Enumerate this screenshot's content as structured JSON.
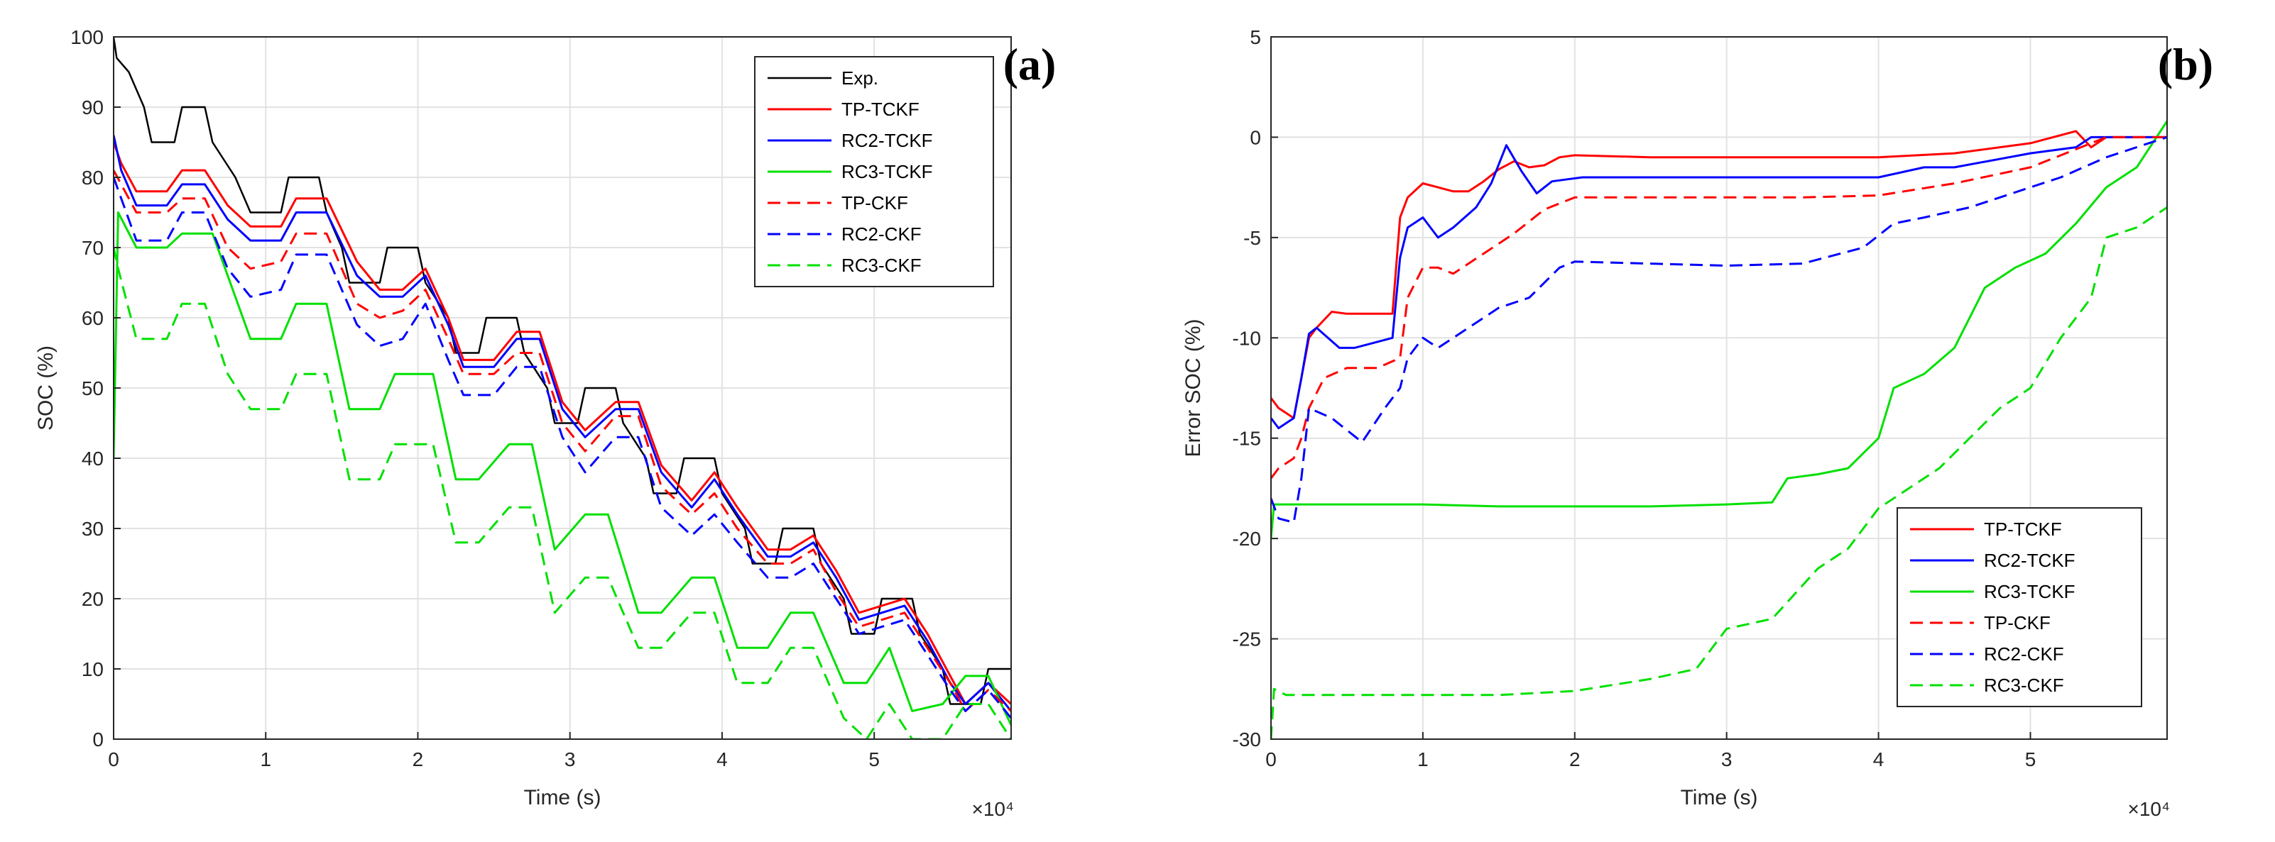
{
  "chart_data": [
    {
      "type": "line",
      "panel_label": "(a)",
      "xlabel": "Time (s)",
      "ylabel": "SOC (%)",
      "x_multiplier_label": "×10⁴",
      "xlim": [
        0,
        5.9
      ],
      "ylim": [
        0,
        100
      ],
      "xticks": [
        0,
        1,
        2,
        3,
        4,
        5
      ],
      "yticks": [
        0,
        10,
        20,
        30,
        40,
        50,
        60,
        70,
        80,
        90,
        100
      ],
      "grid": true,
      "legend_position": "top-right",
      "series": [
        {
          "name": "Exp.",
          "color": "#000000",
          "dash": "solid",
          "x": [
            0,
            0.02,
            0.1,
            0.2,
            0.25,
            0.4,
            0.45,
            0.6,
            0.65,
            0.8,
            0.9,
            1.1,
            1.15,
            1.35,
            1.4,
            1.5,
            1.55,
            1.75,
            1.8,
            2.0,
            2.05,
            2.2,
            2.25,
            2.4,
            2.45,
            2.65,
            2.7,
            2.85,
            2.9,
            3.05,
            3.1,
            3.3,
            3.35,
            3.5,
            3.55,
            3.7,
            3.75,
            3.95,
            4.0,
            4.15,
            4.2,
            4.35,
            4.4,
            4.6,
            4.65,
            4.8,
            4.85,
            5.0,
            5.05,
            5.25,
            5.3,
            5.45,
            5.5,
            5.7,
            5.75,
            5.9
          ],
          "y": [
            100,
            97,
            95,
            90,
            85,
            85,
            90,
            90,
            85,
            80,
            75,
            75,
            80,
            80,
            75,
            70,
            65,
            65,
            70,
            70,
            65,
            60,
            55,
            55,
            60,
            60,
            55,
            50,
            45,
            45,
            50,
            50,
            45,
            40,
            35,
            35,
            40,
            40,
            35,
            30,
            25,
            25,
            30,
            30,
            25,
            20,
            15,
            15,
            20,
            20,
            15,
            10,
            5,
            5,
            10,
            10
          ]
        },
        {
          "name": "TP-TCKF",
          "color": "#ff0000",
          "dash": "solid",
          "x": [
            0,
            0.05,
            0.15,
            0.35,
            0.45,
            0.6,
            0.75,
            0.9,
            1.1,
            1.2,
            1.4,
            1.6,
            1.75,
            1.9,
            2.05,
            2.2,
            2.3,
            2.5,
            2.65,
            2.8,
            2.95,
            3.1,
            3.3,
            3.45,
            3.6,
            3.8,
            3.95,
            4.1,
            4.3,
            4.45,
            4.6,
            4.75,
            4.9,
            5.05,
            5.2,
            5.35,
            5.5,
            5.6,
            5.75,
            5.9
          ],
          "y": [
            85,
            82,
            78,
            78,
            81,
            81,
            76,
            73,
            73,
            77,
            77,
            68,
            64,
            64,
            67,
            60,
            54,
            54,
            58,
            58,
            48,
            44,
            48,
            48,
            39,
            34,
            38,
            33,
            27,
            27,
            29,
            24,
            18,
            19,
            20,
            15,
            9,
            5,
            8,
            5
          ]
        },
        {
          "name": "RC2-TCKF",
          "color": "#0000ff",
          "dash": "solid",
          "x": [
            0,
            0.05,
            0.15,
            0.35,
            0.45,
            0.6,
            0.75,
            0.9,
            1.1,
            1.2,
            1.4,
            1.6,
            1.75,
            1.9,
            2.05,
            2.2,
            2.3,
            2.5,
            2.65,
            2.8,
            2.95,
            3.1,
            3.3,
            3.45,
            3.6,
            3.8,
            3.95,
            4.1,
            4.3,
            4.45,
            4.6,
            4.75,
            4.9,
            5.05,
            5.2,
            5.35,
            5.5,
            5.6,
            5.75,
            5.9
          ],
          "y": [
            86,
            81,
            76,
            76,
            79,
            79,
            74,
            71,
            71,
            75,
            75,
            66,
            63,
            63,
            66,
            59,
            53,
            53,
            57,
            57,
            47,
            43,
            47,
            47,
            38,
            33,
            37,
            32,
            26,
            26,
            28,
            23,
            17,
            18,
            19,
            14,
            8,
            5,
            8,
            4
          ]
        },
        {
          "name": "RC3-TCKF",
          "color": "#00e000",
          "dash": "solid",
          "x": [
            0,
            0.03,
            0.15,
            0.35,
            0.45,
            0.65,
            0.75,
            0.9,
            1.1,
            1.2,
            1.4,
            1.55,
            1.75,
            1.85,
            2.1,
            2.25,
            2.4,
            2.6,
            2.75,
            2.9,
            3.1,
            3.25,
            3.45,
            3.6,
            3.8,
            3.95,
            4.1,
            4.3,
            4.45,
            4.6,
            4.8,
            4.95,
            5.1,
            5.25,
            5.45,
            5.6,
            5.75,
            5.9
          ],
          "y": [
            40,
            75,
            70,
            70,
            72,
            72,
            66,
            57,
            57,
            62,
            62,
            47,
            47,
            52,
            52,
            37,
            37,
            42,
            42,
            27,
            32,
            32,
            18,
            18,
            23,
            23,
            13,
            13,
            18,
            18,
            8,
            8,
            13,
            4,
            5,
            9,
            9,
            2
          ]
        },
        {
          "name": "TP-CKF",
          "color": "#ff0000",
          "dash": "dashed",
          "x": [
            0,
            0.05,
            0.15,
            0.35,
            0.45,
            0.6,
            0.75,
            0.9,
            1.1,
            1.2,
            1.4,
            1.6,
            1.75,
            1.9,
            2.05,
            2.2,
            2.3,
            2.5,
            2.65,
            2.8,
            2.95,
            3.1,
            3.3,
            3.45,
            3.6,
            3.8,
            3.95,
            4.1,
            4.3,
            4.45,
            4.6,
            4.75,
            4.9,
            5.05,
            5.2,
            5.35,
            5.5,
            5.6,
            5.75,
            5.9
          ],
          "y": [
            81,
            79,
            75,
            75,
            77,
            77,
            70,
            67,
            68,
            72,
            72,
            62,
            60,
            61,
            64,
            57,
            52,
            52,
            55,
            55,
            45,
            41,
            46,
            46,
            36,
            32,
            35,
            30,
            25,
            25,
            27,
            21,
            16,
            17,
            18,
            13,
            8,
            4,
            7,
            4
          ]
        },
        {
          "name": "RC2-CKF",
          "color": "#0000ff",
          "dash": "dashed",
          "x": [
            0,
            0.05,
            0.15,
            0.35,
            0.45,
            0.6,
            0.75,
            0.9,
            1.1,
            1.2,
            1.4,
            1.6,
            1.75,
            1.9,
            2.05,
            2.2,
            2.3,
            2.5,
            2.65,
            2.8,
            2.95,
            3.1,
            3.3,
            3.45,
            3.6,
            3.8,
            3.95,
            4.1,
            4.3,
            4.45,
            4.6,
            4.75,
            4.9,
            5.05,
            5.2,
            5.35,
            5.5,
            5.6,
            5.75,
            5.9
          ],
          "y": [
            80,
            77,
            71,
            71,
            75,
            75,
            67,
            63,
            64,
            69,
            69,
            59,
            56,
            57,
            62,
            54,
            49,
            49,
            53,
            53,
            43,
            38,
            43,
            43,
            33,
            29,
            32,
            28,
            23,
            23,
            25,
            20,
            15,
            16,
            17,
            12,
            7,
            4,
            7,
            3
          ]
        },
        {
          "name": "RC3-CKF",
          "color": "#00e000",
          "dash": "dashed",
          "x": [
            0,
            0.03,
            0.15,
            0.35,
            0.45,
            0.6,
            0.75,
            0.9,
            1.1,
            1.2,
            1.4,
            1.55,
            1.75,
            1.85,
            2.1,
            2.25,
            2.4,
            2.6,
            2.75,
            2.9,
            3.1,
            3.25,
            3.45,
            3.6,
            3.8,
            3.95,
            4.1,
            4.3,
            4.45,
            4.6,
            4.8,
            4.95,
            5.1,
            5.25,
            5.45,
            5.6,
            5.75,
            5.9
          ],
          "y": [
            70,
            67,
            57,
            57,
            62,
            62,
            52,
            47,
            47,
            52,
            52,
            37,
            37,
            42,
            42,
            28,
            28,
            33,
            33,
            18,
            23,
            23,
            13,
            13,
            18,
            18,
            8,
            8,
            13,
            13,
            3,
            0,
            5,
            0,
            0,
            5,
            5,
            0
          ]
        }
      ]
    },
    {
      "type": "line",
      "panel_label": "(b)",
      "xlabel": "Time (s)",
      "ylabel": "Error SOC (%)",
      "x_multiplier_label": "×10⁴",
      "xlim": [
        0,
        5.9
      ],
      "ylim": [
        -30,
        5
      ],
      "xticks": [
        0,
        1,
        2,
        3,
        4,
        5
      ],
      "yticks": [
        -30,
        -25,
        -20,
        -15,
        -10,
        -5,
        0,
        5
      ],
      "grid": true,
      "legend_position": "bottom-right",
      "series": [
        {
          "name": "TP-TCKF",
          "color": "#ff0000",
          "dash": "solid",
          "x": [
            0,
            0.05,
            0.15,
            0.2,
            0.25,
            0.3,
            0.4,
            0.5,
            0.8,
            0.85,
            0.9,
            1.0,
            1.1,
            1.2,
            1.3,
            1.4,
            1.5,
            1.6,
            1.7,
            1.8,
            1.9,
            2.0,
            2.5,
            3.0,
            3.5,
            4.0,
            4.5,
            5.0,
            5.3,
            5.4,
            5.5,
            5.9
          ],
          "y": [
            -13,
            -13.5,
            -14,
            -12,
            -10,
            -9.5,
            -8.7,
            -8.8,
            -8.8,
            -4,
            -3,
            -2.3,
            -2.5,
            -2.7,
            -2.7,
            -2.2,
            -1.6,
            -1.2,
            -1.5,
            -1.4,
            -1.0,
            -0.9,
            -1.0,
            -1.0,
            -1.0,
            -1.0,
            -0.8,
            -0.3,
            0.3,
            -0.5,
            0,
            0
          ]
        },
        {
          "name": "RC2-TCKF",
          "color": "#0000ff",
          "dash": "solid",
          "x": [
            0,
            0.05,
            0.15,
            0.2,
            0.25,
            0.3,
            0.45,
            0.55,
            0.8,
            0.85,
            0.9,
            1.0,
            1.1,
            1.2,
            1.35,
            1.45,
            1.55,
            1.65,
            1.75,
            1.85,
            1.95,
            2.05,
            2.5,
            3.0,
            3.5,
            4.0,
            4.3,
            4.5,
            5.0,
            5.3,
            5.4,
            5.5,
            5.9
          ],
          "y": [
            -14,
            -14.5,
            -14,
            -12,
            -9.8,
            -9.5,
            -10.5,
            -10.5,
            -10,
            -6,
            -4.5,
            -4,
            -5,
            -4.5,
            -3.5,
            -2.3,
            -0.4,
            -1.7,
            -2.8,
            -2.2,
            -2.1,
            -2.0,
            -2.0,
            -2.0,
            -2.0,
            -2.0,
            -1.5,
            -1.5,
            -0.8,
            -0.5,
            0,
            0,
            0
          ]
        },
        {
          "name": "RC3-TCKF",
          "color": "#00e000",
          "dash": "solid",
          "x": [
            0,
            0.02,
            0.1,
            0.5,
            1.0,
            1.5,
            2.0,
            2.5,
            3.0,
            3.3,
            3.4,
            3.6,
            3.8,
            4.0,
            4.1,
            4.3,
            4.5,
            4.7,
            4.9,
            5.1,
            5.3,
            5.5,
            5.7,
            5.9
          ],
          "y": [
            -20,
            -18.3,
            -18.3,
            -18.3,
            -18.3,
            -18.4,
            -18.4,
            -18.4,
            -18.3,
            -18.2,
            -17,
            -16.8,
            -16.5,
            -15,
            -12.5,
            -11.8,
            -10.5,
            -7.5,
            -6.5,
            -5.8,
            -4.3,
            -2.5,
            -1.5,
            0.8
          ]
        },
        {
          "name": "TP-CKF",
          "color": "#ff0000",
          "dash": "dashed",
          "x": [
            0,
            0.05,
            0.15,
            0.2,
            0.25,
            0.35,
            0.5,
            0.7,
            0.85,
            0.9,
            1.0,
            1.1,
            1.2,
            1.4,
            1.6,
            1.8,
            2.0,
            2.5,
            3.0,
            3.5,
            4.0,
            4.5,
            5.0,
            5.3,
            5.5,
            5.9
          ],
          "y": [
            -17,
            -16.5,
            -16,
            -15,
            -13.5,
            -12,
            -11.5,
            -11.5,
            -11,
            -8,
            -6.5,
            -6.5,
            -6.8,
            -5.8,
            -4.8,
            -3.6,
            -3.0,
            -3.0,
            -3.0,
            -3.0,
            -2.9,
            -2.3,
            -1.5,
            -0.6,
            0,
            0
          ]
        },
        {
          "name": "RC2-CKF",
          "color": "#0000ff",
          "dash": "dashed",
          "x": [
            0,
            0.05,
            0.15,
            0.2,
            0.25,
            0.4,
            0.6,
            0.75,
            0.85,
            0.9,
            1.0,
            1.1,
            1.3,
            1.5,
            1.7,
            1.9,
            2.0,
            2.5,
            3.0,
            3.5,
            3.9,
            4.1,
            4.3,
            4.6,
            5.0,
            5.2,
            5.5,
            5.9
          ],
          "y": [
            -18,
            -19,
            -19.2,
            -17,
            -13.5,
            -14,
            -15.2,
            -13.5,
            -12.5,
            -11,
            -10,
            -10.5,
            -9.5,
            -8.5,
            -8,
            -6.5,
            -6.2,
            -6.3,
            -6.4,
            -6.3,
            -5.5,
            -4.3,
            -4.0,
            -3.5,
            -2.5,
            -2.0,
            -1.0,
            0
          ]
        },
        {
          "name": "RC3-CKF",
          "color": "#00e000",
          "dash": "dashed",
          "x": [
            0,
            0.02,
            0.1,
            0.5,
            1.0,
            1.5,
            2.0,
            2.5,
            2.8,
            3.0,
            3.3,
            3.6,
            3.8,
            4.0,
            4.2,
            4.4,
            4.6,
            4.8,
            5.0,
            5.2,
            5.4,
            5.5,
            5.7,
            5.9
          ],
          "y": [
            -30,
            -27.5,
            -27.8,
            -27.8,
            -27.8,
            -27.8,
            -27.6,
            -27.0,
            -26.5,
            -24.5,
            -24.0,
            -21.5,
            -20.5,
            -18.5,
            -17.5,
            -16.5,
            -15,
            -13.5,
            -12.5,
            -10,
            -8,
            -5,
            -4.5,
            -3.5
          ]
        }
      ]
    }
  ]
}
